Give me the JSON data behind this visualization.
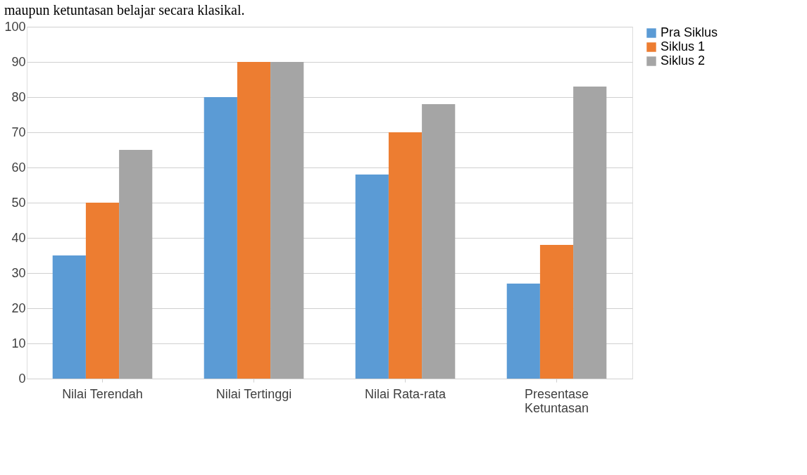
{
  "chart_data": {
    "type": "bar",
    "categories": [
      "Nilai Terendah",
      "Nilai Tertinggi",
      "Nilai Rata-rata",
      "Presentase Ketuntasan"
    ],
    "series": [
      {
        "name": "Pra Siklus",
        "color": "#5b9bd5",
        "values": [
          35,
          80,
          58,
          27
        ]
      },
      {
        "name": "Siklus 1",
        "color": "#ed7d31",
        "values": [
          50,
          90,
          70,
          38
        ]
      },
      {
        "name": "Siklus 2",
        "color": "#a5a5a5",
        "values": [
          65,
          90,
          78,
          83
        ]
      }
    ],
    "ylim": [
      0,
      100
    ],
    "yticks": [
      0,
      10,
      20,
      30,
      40,
      50,
      60,
      70,
      80,
      90,
      100
    ],
    "grid": "y",
    "legend": "right",
    "annotations": [
      "maupun ketuntasan belajar secara klasikal."
    ]
  }
}
